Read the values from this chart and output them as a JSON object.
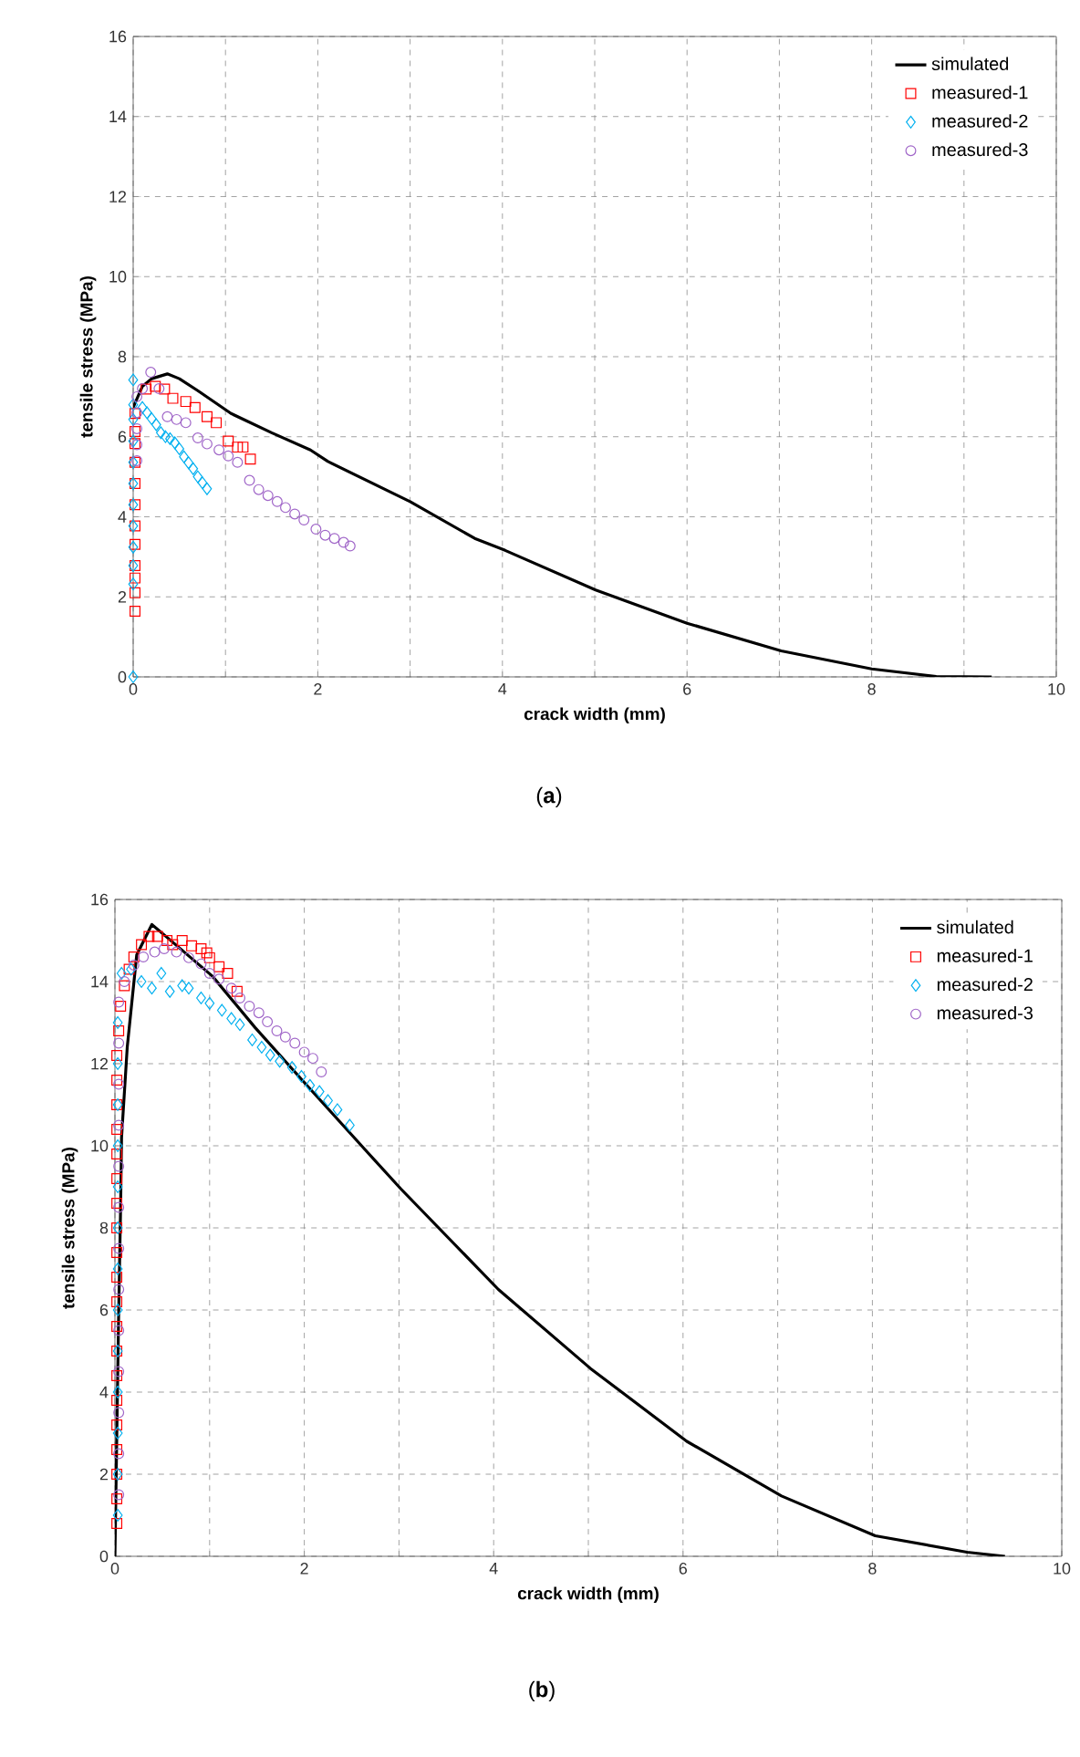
{
  "chart_data": [
    {
      "type": "line",
      "xlabel": "crack width (mm)",
      "ylabel": "tensile stress (MPa)",
      "annotations": [
        "(**a**)"
      ],
      "xlim": [
        0,
        10
      ],
      "ylim": [
        0,
        16
      ],
      "xticks": [
        0,
        {
          "value": 1,
          "label": null
        },
        2,
        {
          "value": 3,
          "label": null
        },
        4,
        {
          "value": 5,
          "label": null
        },
        6,
        {
          "value": 7,
          "label": null
        },
        8,
        {
          "value": 9,
          "label": null
        },
        10
      ],
      "yticks": [
        0,
        2,
        4,
        6,
        8,
        10,
        12,
        14,
        16
      ],
      "grid": true,
      "legend": "top right",
      "series": [
        {
          "name": "simulated",
          "type": "line",
          "marker": "none",
          "color": "#000000",
          "x": [
            0,
            0.1,
            0.2,
            0.37,
            0.5,
            0.7,
            1.06,
            1.5,
            1.92,
            2.11,
            3.0,
            3.7,
            4.03,
            5.01,
            6.0,
            7.02,
            8.0,
            8.7,
            9.3
          ],
          "values": [
            6.73,
            7.26,
            7.45,
            7.57,
            7.45,
            7.15,
            6.58,
            6.1,
            5.67,
            5.38,
            4.38,
            3.46,
            3.16,
            2.17,
            1.34,
            0.65,
            0.2,
            0.01,
            0
          ]
        },
        {
          "name": "measured-1",
          "type": "scatter",
          "marker": "square",
          "color": "#ff0000",
          "x": [
            0.02,
            0.02,
            0.02,
            0.02,
            0.02,
            0.02,
            0.02,
            0.02,
            0.02,
            0.02,
            0.02,
            0.02,
            0.14,
            0.24,
            0.34,
            0.43,
            0.57,
            0.67,
            0.8,
            0.9,
            1.03,
            1.13,
            1.19,
            1.27
          ],
          "values": [
            1.64,
            2.1,
            2.47,
            2.78,
            3.31,
            3.77,
            4.3,
            4.83,
            5.36,
            5.83,
            6.13,
            6.58,
            7.19,
            7.26,
            7.19,
            6.96,
            6.88,
            6.73,
            6.5,
            6.35,
            5.89,
            5.74,
            5.74,
            5.44
          ]
        },
        {
          "name": "measured-2",
          "type": "scatter",
          "marker": "diamond",
          "color": "#00b0f0",
          "x": [
            0,
            0,
            0,
            0,
            0,
            0,
            0,
            0,
            0,
            0,
            0,
            0,
            0.1,
            0.15,
            0.2,
            0.25,
            0.3,
            0.35,
            0.4,
            0.45,
            0.5,
            0.55,
            0.6,
            0.65,
            0.7,
            0.75,
            0.8
          ],
          "values": [
            0,
            2.32,
            2.78,
            3.24,
            3.77,
            4.3,
            4.83,
            5.36,
            5.89,
            6.43,
            6.8,
            7.42,
            6.73,
            6.6,
            6.45,
            6.3,
            6.1,
            6.0,
            5.95,
            5.85,
            5.7,
            5.5,
            5.35,
            5.2,
            5.0,
            4.85,
            4.7
          ]
        },
        {
          "name": "measured-3",
          "type": "scatter",
          "marker": "circle",
          "color": "#a066c8",
          "x": [
            0.04,
            0.04,
            0.04,
            0.04,
            0.04,
            0.1,
            0.19,
            0.28,
            0.37,
            0.47,
            0.57,
            0.7,
            0.8,
            0.93,
            1.03,
            1.13,
            1.26,
            1.36,
            1.46,
            1.56,
            1.65,
            1.75,
            1.85,
            1.98,
            2.08,
            2.18,
            2.28,
            2.35
          ],
          "values": [
            5.4,
            5.8,
            6.2,
            6.6,
            7.0,
            7.2,
            7.61,
            7.2,
            6.5,
            6.43,
            6.35,
            5.97,
            5.82,
            5.67,
            5.52,
            5.36,
            4.91,
            4.68,
            4.53,
            4.38,
            4.23,
            4.07,
            3.92,
            3.69,
            3.54,
            3.46,
            3.36,
            3.27
          ]
        }
      ]
    },
    {
      "type": "line",
      "xlabel": "crack width (mm)",
      "ylabel": "tensile stress (MPa)",
      "annotations": [
        "(**b**)"
      ],
      "xlim": [
        0,
        10
      ],
      "ylim": [
        0,
        16
      ],
      "xticks": [
        0,
        {
          "value": 1,
          "label": null
        },
        2,
        {
          "value": 3,
          "label": null
        },
        4,
        {
          "value": 5,
          "label": null
        },
        6,
        {
          "value": 7,
          "label": null
        },
        8,
        {
          "value": 9,
          "label": null
        },
        10
      ],
      "yticks": [
        0,
        2,
        4,
        6,
        8,
        10,
        12,
        14,
        16
      ],
      "grid": true,
      "legend": "top right",
      "series": [
        {
          "name": "simulated",
          "type": "line",
          "marker": "none",
          "color": "#000000",
          "x": [
            0,
            0.02,
            0.04,
            0.06,
            0.07,
            0.13,
            0.23,
            0.39,
            0.58,
            1.03,
            1.48,
            2.06,
            2.64,
            3.02,
            4.05,
            5.02,
            6.04,
            7.04,
            8.03,
            9.0,
            9.4
          ],
          "values": [
            0,
            3,
            6,
            8.5,
            10.2,
            12.4,
            14.65,
            15.39,
            15.02,
            14.13,
            12.88,
            11.39,
            9.91,
            8.95,
            6.5,
            4.58,
            2.8,
            1.47,
            0.5,
            0.1,
            0
          ]
        },
        {
          "name": "measured-1",
          "type": "scatter",
          "marker": "square",
          "color": "#ff0000",
          "x": [
            0.02,
            0.02,
            0.02,
            0.02,
            0.02,
            0.02,
            0.02,
            0.02,
            0.02,
            0.02,
            0.02,
            0.02,
            0.02,
            0.02,
            0.02,
            0.02,
            0.02,
            0.02,
            0.02,
            0.02,
            0.04,
            0.06,
            0.1,
            0.15,
            0.2,
            0.28,
            0.36,
            0.45,
            0.55,
            0.61,
            0.71,
            0.81,
            0.91,
            0.97,
            1.0,
            1.1,
            1.19,
            1.29
          ],
          "values": [
            0.8,
            1.4,
            2.0,
            2.6,
            3.2,
            3.8,
            4.4,
            5.0,
            5.6,
            6.2,
            6.8,
            7.4,
            8.0,
            8.6,
            9.2,
            9.8,
            10.4,
            11.0,
            11.6,
            12.2,
            12.8,
            13.4,
            13.9,
            14.3,
            14.6,
            14.9,
            15.1,
            15.1,
            15.0,
            14.9,
            15.0,
            14.87,
            14.8,
            14.7,
            14.58,
            14.36,
            14.2,
            13.76
          ]
        },
        {
          "name": "measured-2",
          "type": "scatter",
          "marker": "diamond",
          "color": "#00b0f0",
          "x": [
            0.03,
            0.03,
            0.03,
            0.03,
            0.03,
            0.03,
            0.03,
            0.03,
            0.03,
            0.03,
            0.03,
            0.03,
            0.03,
            0.07,
            0.17,
            0.28,
            0.39,
            0.49,
            0.58,
            0.71,
            0.78,
            0.91,
            1.0,
            1.13,
            1.23,
            1.32,
            1.45,
            1.55,
            1.64,
            1.74,
            1.87,
            1.97,
            2.06,
            2.16,
            2.25,
            2.35,
            2.48
          ],
          "values": [
            1.0,
            2.0,
            3.0,
            4.0,
            5.0,
            6.0,
            7.0,
            8.0,
            9.0,
            10.0,
            11.0,
            12.0,
            13.0,
            14.2,
            14.3,
            14.0,
            13.84,
            14.2,
            13.76,
            13.9,
            13.84,
            13.6,
            13.47,
            13.3,
            13.1,
            12.95,
            12.58,
            12.4,
            12.21,
            12.06,
            11.91,
            11.69,
            11.47,
            11.32,
            11.1,
            10.88,
            10.5
          ]
        },
        {
          "name": "measured-3",
          "type": "scatter",
          "marker": "circle",
          "color": "#a066c8",
          "x": [
            0.04,
            0.04,
            0.04,
            0.04,
            0.04,
            0.04,
            0.04,
            0.04,
            0.04,
            0.04,
            0.04,
            0.04,
            0.04,
            0.1,
            0.2,
            0.3,
            0.42,
            0.52,
            0.65,
            0.78,
            0.91,
            1.0,
            1.1,
            1.23,
            1.32,
            1.42,
            1.52,
            1.61,
            1.71,
            1.8,
            1.9,
            2.0,
            2.09,
            2.18
          ],
          "values": [
            1.5,
            2.5,
            3.5,
            4.5,
            5.5,
            6.5,
            7.5,
            8.5,
            9.5,
            10.5,
            11.5,
            12.5,
            13.5,
            14.0,
            14.4,
            14.6,
            14.72,
            14.8,
            14.72,
            14.58,
            14.43,
            14.2,
            14.06,
            13.84,
            13.6,
            13.4,
            13.24,
            13.02,
            12.8,
            12.65,
            12.5,
            12.28,
            12.13,
            11.8
          ]
        }
      ]
    }
  ]
}
